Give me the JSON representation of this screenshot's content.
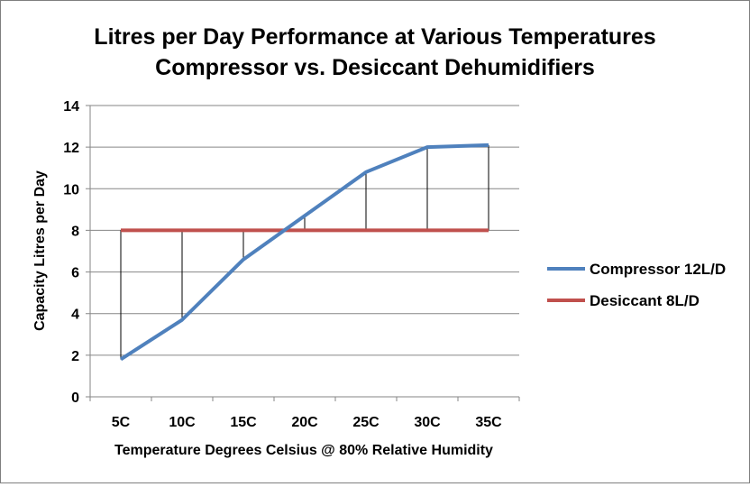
{
  "chart_data": {
    "type": "line",
    "title": "Litres per Day Performance at Various Temperatures",
    "subtitle": "Compressor vs. Desiccant Dehumidifiers",
    "xlabel": "Temperature Degrees Celsius @ 80% Relative Humidity",
    "ylabel": "Capacity Litres per Day",
    "categories": [
      "5C",
      "10C",
      "15C",
      "20C",
      "25C",
      "30C",
      "35C"
    ],
    "ylim": [
      0,
      14
    ],
    "yticks": [
      0,
      2,
      4,
      6,
      8,
      10,
      12,
      14
    ],
    "grid": true,
    "legend_position": "right",
    "high_low_lines": true,
    "series": [
      {
        "name": "Compressor 12L/D",
        "color": "#4f81bd",
        "values": [
          1.8,
          3.7,
          6.6,
          8.7,
          10.8,
          12.0,
          12.1
        ]
      },
      {
        "name": "Desiccant 8L/D",
        "color": "#c0504d",
        "values": [
          8,
          8,
          8,
          8,
          8,
          8,
          8
        ]
      }
    ]
  }
}
